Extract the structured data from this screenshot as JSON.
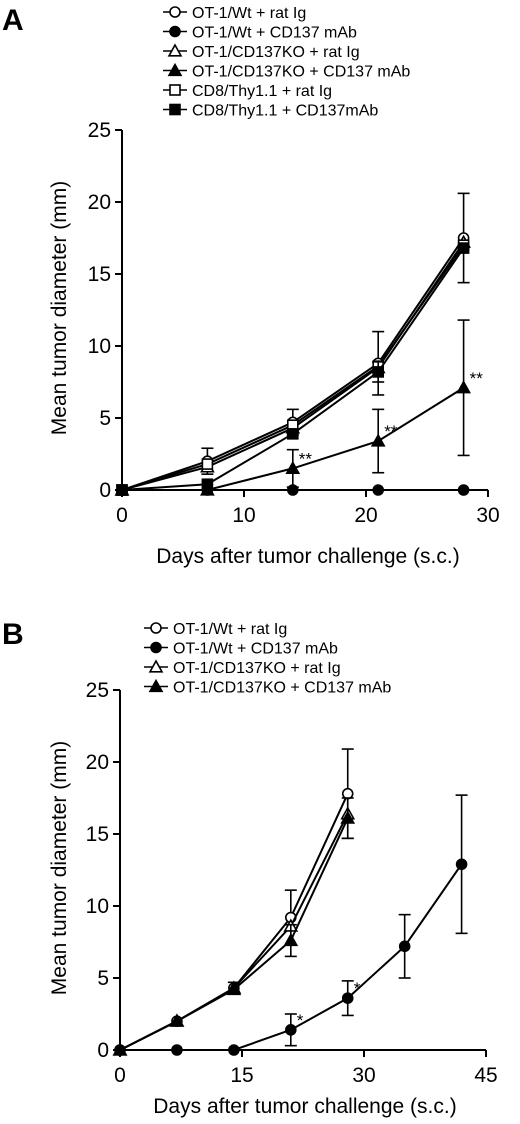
{
  "chart_data": [
    {
      "panel": "A",
      "type": "line",
      "xlabel": "Days after tumor challenge (s.c.)",
      "ylabel": "Mean tumor diameter (mm)",
      "xlim": [
        0,
        30
      ],
      "ylim": [
        0,
        25
      ],
      "xticks": [
        0,
        10,
        20,
        30
      ],
      "yticks": [
        0,
        5,
        10,
        15,
        20,
        25
      ],
      "legend_position": "top",
      "series": [
        {
          "name": "OT-1/Wt + rat Ig",
          "marker": "circle-open",
          "x": [
            0,
            7,
            14,
            21,
            28
          ],
          "y": [
            0,
            2.0,
            4.7,
            8.8,
            17.5
          ],
          "err": [
            0,
            0.9,
            0.9,
            2.2,
            3.1
          ]
        },
        {
          "name": "OT-1/Wt + CD137 mAb",
          "marker": "circle-filled",
          "x": [
            0,
            7,
            14,
            21,
            28
          ],
          "y": [
            0,
            0,
            0,
            0,
            0
          ],
          "err": [
            0,
            0,
            0,
            0,
            0
          ]
        },
        {
          "name": "OT-1/CD137KO + rat Ig",
          "marker": "triangle-open",
          "x": [
            0,
            7,
            14,
            21,
            28
          ],
          "y": [
            0,
            1.6,
            4.3,
            8.5,
            17.2
          ],
          "err": [
            0,
            0,
            0,
            0,
            0
          ]
        },
        {
          "name": "OT-1/CD137KO + CD137 mAb",
          "marker": "triangle-filled",
          "x": [
            0,
            7,
            14,
            21,
            28
          ],
          "y": [
            0,
            0,
            1.5,
            3.4,
            7.1
          ],
          "err": [
            0,
            0,
            1.3,
            2.2,
            4.7
          ]
        },
        {
          "name": "CD8/Thy1.1 + rat Ig",
          "marker": "square-open",
          "x": [
            0,
            7,
            14,
            21,
            28
          ],
          "y": [
            0,
            1.8,
            4.5,
            8.6,
            17.0
          ],
          "err": [
            0,
            0,
            0,
            0,
            0
          ]
        },
        {
          "name": "CD8/Thy1.1 + CD137mAb",
          "marker": "square-filled",
          "x": [
            0,
            7,
            14,
            21,
            28
          ],
          "y": [
            0,
            0.4,
            3.9,
            8.2,
            16.8
          ],
          "err": [
            0,
            0,
            0,
            0.7,
            0
          ]
        }
      ],
      "annotations": [
        {
          "text": "**",
          "x": 14,
          "y": 1.5
        },
        {
          "text": "**",
          "x": 21,
          "y": 3.4
        },
        {
          "text": "**",
          "x": 28,
          "y": 7.1
        }
      ]
    },
    {
      "panel": "B",
      "type": "line",
      "xlabel": "Days after tumor challenge (s.c.)",
      "ylabel": "Mean tumor diameter (mm)",
      "xlim": [
        0,
        45
      ],
      "ylim": [
        0,
        25
      ],
      "xticks": [
        0,
        15,
        30,
        45
      ],
      "yticks": [
        0,
        5,
        10,
        15,
        20,
        25
      ],
      "legend_position": "top",
      "series": [
        {
          "name": "OT-1/Wt + rat Ig",
          "marker": "circle-open",
          "x": [
            0,
            7,
            14,
            21,
            28
          ],
          "y": [
            0,
            2.0,
            4.3,
            9.2,
            17.8
          ],
          "err": [
            0,
            0,
            0.4,
            1.9,
            3.1
          ]
        },
        {
          "name": "OT-1/Wt + CD137 mAb",
          "marker": "circle-filled",
          "x": [
            0,
            7,
            14,
            21,
            28,
            35,
            42
          ],
          "y": [
            0,
            0,
            0,
            1.4,
            3.6,
            7.2,
            12.9
          ],
          "err": [
            0,
            0,
            0,
            1.1,
            1.2,
            2.2,
            4.8
          ]
        },
        {
          "name": "OT-1/CD137KO + rat Ig",
          "marker": "triangle-open",
          "x": [
            0,
            7,
            14,
            21,
            28
          ],
          "y": [
            0,
            2.0,
            4.3,
            8.6,
            16.4
          ],
          "err": [
            0,
            0,
            0,
            0,
            0
          ]
        },
        {
          "name": "OT-1/CD137KO + CD137 mAb",
          "marker": "triangle-filled",
          "x": [
            0,
            7,
            14,
            21,
            28
          ],
          "y": [
            0,
            2.0,
            4.2,
            7.6,
            16.1
          ],
          "err": [
            0,
            0,
            0,
            1.1,
            1.4
          ]
        }
      ],
      "annotations": [
        {
          "text": "*",
          "x": 21,
          "y": 1.4
        },
        {
          "text": "*",
          "x": 28,
          "y": 3.6
        }
      ]
    }
  ]
}
